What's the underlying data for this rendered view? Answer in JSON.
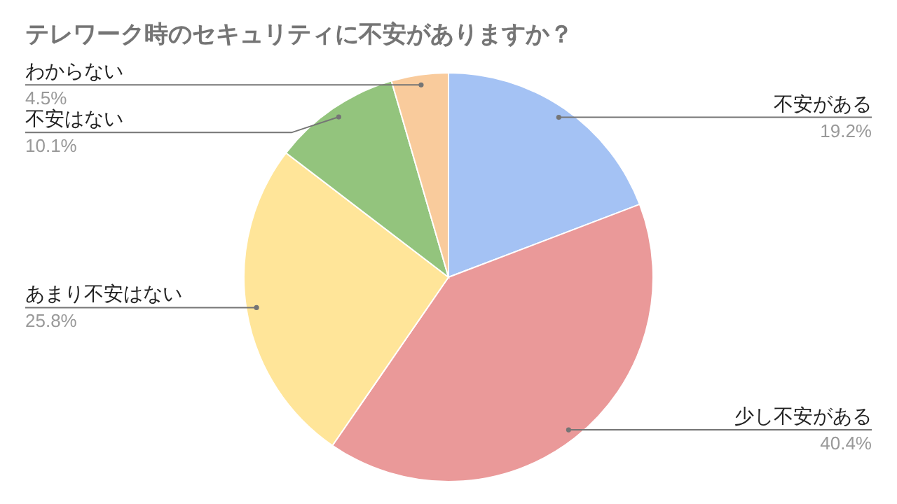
{
  "chart_data": {
    "type": "pie",
    "title": "テレワーク時のセキュリティに不安がありますか？",
    "categories": [
      "不安がある",
      "少し不安がある",
      "あまり不安はない",
      "不安はない",
      "わからない"
    ],
    "values": [
      19.2,
      40.4,
      25.8,
      10.1,
      4.5
    ],
    "colors": [
      "#a4c2f4",
      "#ea9999",
      "#ffe599",
      "#93c47d",
      "#f9cb9c"
    ],
    "value_labels": [
      "19.2%",
      "40.4%",
      "25.8%",
      "10.1%",
      "4.5%"
    ]
  }
}
